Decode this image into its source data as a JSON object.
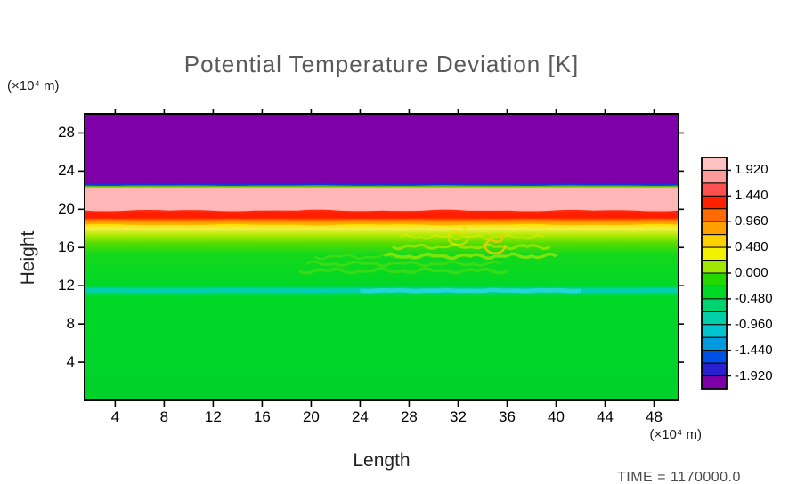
{
  "title": "Potential Temperature Deviation [K]",
  "time_label": "TIME =  1170000.0",
  "axes": {
    "x": {
      "label": "Length",
      "unit": "(×10⁴ m)",
      "ticks": [
        4,
        8,
        12,
        16,
        20,
        24,
        28,
        32,
        36,
        40,
        44,
        48
      ]
    },
    "y": {
      "label": "Height",
      "unit": "(×10⁴ m)",
      "ticks": [
        4,
        8,
        12,
        16,
        20,
        24,
        28
      ]
    }
  },
  "colorbar": {
    "labels": [
      "1.920",
      "1.440",
      "0.960",
      "0.480",
      "0.000",
      "-0.480",
      "-0.960",
      "-1.440",
      "-1.920"
    ],
    "values": [
      1.92,
      1.44,
      0.96,
      0.48,
      0.0,
      -0.48,
      -0.96,
      -1.44,
      -1.92
    ],
    "range": [
      2.16,
      -2.16
    ],
    "segments": [
      "#ffc2c2",
      "#ff9a9a",
      "#ff5050",
      "#ff2000",
      "#ff6a00",
      "#ffa000",
      "#ffd000",
      "#f2f200",
      "#a0e800",
      "#22d800",
      "#00d826",
      "#00d470",
      "#00cfa8",
      "#00c4cf",
      "#009ae0",
      "#0050e8",
      "#2b20d0",
      "#7d00a8"
    ]
  },
  "chart_data": {
    "type": "heatmap",
    "title": "Potential Temperature Deviation [K]",
    "xlabel": "Length (×10⁴ m)",
    "ylabel": "Height (×10⁴ m)",
    "xlim": [
      1.5,
      50
    ],
    "ylim": [
      0,
      30
    ],
    "colorbar_ticks": [
      1.92,
      1.44,
      0.96,
      0.48,
      0.0,
      -0.48,
      -0.96,
      -1.44,
      -1.92
    ],
    "grid": false,
    "legend_position": "right-colorbar",
    "bands": [
      {
        "height": [
          22.7,
          30
        ],
        "value": -1.92,
        "color": "#7d00a8",
        "note": "uniform minimum deviation (purple) in upper layer"
      },
      {
        "height": [
          22.4,
          22.7
        ],
        "value": "-1.9 to +1.9",
        "note": "sharp inversion transition with thin blue/cyan/orange lines"
      },
      {
        "height": [
          19.9,
          22.4
        ],
        "value": 1.92,
        "color": "#ffb6b6",
        "note": "maximum deviation layer (pink)"
      },
      {
        "height": [
          19.1,
          19.9
        ],
        "value": 1.44,
        "color": "#ff2000",
        "note": "red layer, slightly wavy"
      },
      {
        "height": [
          17.3,
          19.1
        ],
        "value": "0.5 to 1.0",
        "color": "#ffa000",
        "note": "orange-to-yellow gradient layer"
      },
      {
        "height": [
          11.9,
          17.3
        ],
        "value": "0.0 to 0.3",
        "color": "#22d800",
        "note": "green near-zero layer; turbulent yellowish wisps near x 26-40, h 14-18"
      },
      {
        "height": [
          11.2,
          11.9
        ],
        "value": -0.8,
        "color": "#00d0bb",
        "note": "thin cool cyan streak"
      },
      {
        "height": [
          0,
          11.2
        ],
        "value": 0.0,
        "color": "#00d32b",
        "note": "uniform green near-zero deviation"
      }
    ],
    "profile": [
      {
        "h": 30,
        "c": "#7d00a8"
      },
      {
        "h": 22.78,
        "c": "#7d00a8"
      },
      {
        "h": 22.62,
        "c": "#1330dd"
      },
      {
        "h": 22.5,
        "c": "#00c8e0"
      },
      {
        "h": 22.42,
        "c": "#30cc00"
      },
      {
        "h": 22.34,
        "c": "#ff9000"
      },
      {
        "h": 22.22,
        "c": "#ffb6b6"
      },
      {
        "h": 19.9,
        "c": "#ffb6b6"
      },
      {
        "h": 19.62,
        "c": "#ff2000"
      },
      {
        "h": 19.1,
        "c": "#ff2000"
      },
      {
        "h": 18.78,
        "c": "#ff8a00"
      },
      {
        "h": 18.4,
        "c": "#ffe000"
      },
      {
        "h": 17.95,
        "c": "#f2ee4a"
      },
      {
        "h": 17.35,
        "c": "#b2ea00"
      },
      {
        "h": 16.45,
        "c": "#56dd00"
      },
      {
        "h": 15.3,
        "c": "#14d81c"
      },
      {
        "h": 12.0,
        "c": "#00d826"
      },
      {
        "h": 11.7,
        "c": "#00d590"
      },
      {
        "h": 11.45,
        "c": "#00d0bb"
      },
      {
        "h": 11.15,
        "c": "#00d655"
      },
      {
        "h": 10.8,
        "c": "#00d826"
      },
      {
        "h": 0,
        "c": "#00d12b"
      }
    ],
    "features": [
      {
        "type": "streak",
        "x": [
          1.5,
          50
        ],
        "h": 19.55,
        "color": "#ff1e00",
        "width": 7,
        "opacity": 0.9,
        "amp": 2.2
      },
      {
        "type": "streak",
        "x": [
          1.5,
          50
        ],
        "h": 18.62,
        "color": "#ff9000",
        "width": 5,
        "opacity": 0.55,
        "amp": 1.8
      },
      {
        "type": "streak",
        "x": [
          1.5,
          50
        ],
        "h": 22.6,
        "color": "#1330dd",
        "width": 2.5,
        "opacity": 0.9,
        "amp": 0.8
      },
      {
        "type": "streak",
        "x": [
          1.5,
          50
        ],
        "h": 11.5,
        "color": "#00cfc0",
        "width": 3.5,
        "opacity": 0.85,
        "amp": 1.2
      },
      {
        "type": "streak",
        "x": [
          24,
          42
        ],
        "h": 11.5,
        "color": "#33d8e8",
        "width": 4.5,
        "opacity": 0.7,
        "amp": 1.5
      },
      {
        "type": "wisp",
        "x": [
          26,
          40
        ],
        "h": [
          14.6,
          17.6
        ],
        "color": "#e4ee00",
        "opacity": 0.5
      },
      {
        "type": "wisp",
        "x": [
          19,
          36
        ],
        "h": [
          13.2,
          15.4
        ],
        "color": "#86e400",
        "opacity": 0.35
      },
      {
        "type": "swirl",
        "x": 35,
        "h": 16.3,
        "color": "#ffc400",
        "opacity": 0.85
      },
      {
        "type": "swirl",
        "x": 32,
        "h": 17.2,
        "color": "#f0e000",
        "opacity": 0.6
      }
    ]
  }
}
